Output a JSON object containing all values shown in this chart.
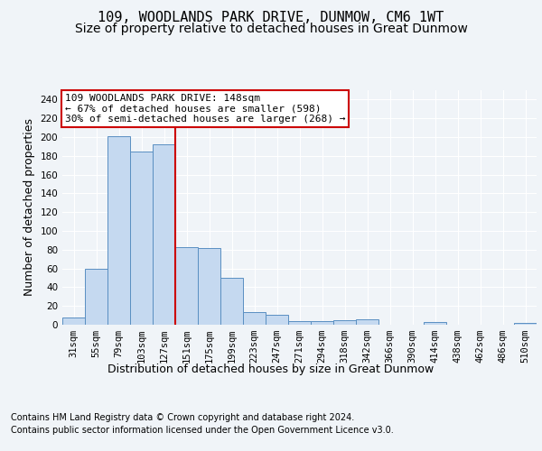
{
  "title": "109, WOODLANDS PARK DRIVE, DUNMOW, CM6 1WT",
  "subtitle": "Size of property relative to detached houses in Great Dunmow",
  "xlabel": "Distribution of detached houses by size in Great Dunmow",
  "ylabel": "Number of detached properties",
  "categories": [
    "31sqm",
    "55sqm",
    "79sqm",
    "103sqm",
    "127sqm",
    "151sqm",
    "175sqm",
    "199sqm",
    "223sqm",
    "247sqm",
    "271sqm",
    "294sqm",
    "318sqm",
    "342sqm",
    "366sqm",
    "390sqm",
    "414sqm",
    "438sqm",
    "462sqm",
    "486sqm",
    "510sqm"
  ],
  "values": [
    8,
    60,
    201,
    185,
    192,
    83,
    82,
    50,
    13,
    11,
    4,
    4,
    5,
    6,
    0,
    0,
    3,
    0,
    0,
    0,
    2
  ],
  "bar_color": "#c5d9f0",
  "bar_edge_color": "#5a8fc2",
  "vline_index": 4,
  "vline_color": "#cc0000",
  "annotation_text": "109 WOODLANDS PARK DRIVE: 148sqm\n← 67% of detached houses are smaller (598)\n30% of semi-detached houses are larger (268) →",
  "annotation_box_color": "#ffffff",
  "annotation_box_edge": "#cc0000",
  "ylim": [
    0,
    250
  ],
  "yticks": [
    0,
    20,
    40,
    60,
    80,
    100,
    120,
    140,
    160,
    180,
    200,
    220,
    240
  ],
  "footer_line1": "Contains HM Land Registry data © Crown copyright and database right 2024.",
  "footer_line2": "Contains public sector information licensed under the Open Government Licence v3.0.",
  "title_fontsize": 11,
  "subtitle_fontsize": 10,
  "axis_label_fontsize": 9,
  "tick_fontsize": 7.5,
  "annotation_fontsize": 8,
  "footer_fontsize": 7,
  "background_color": "#f0f4f8",
  "plot_bg_color": "#f0f4f8"
}
